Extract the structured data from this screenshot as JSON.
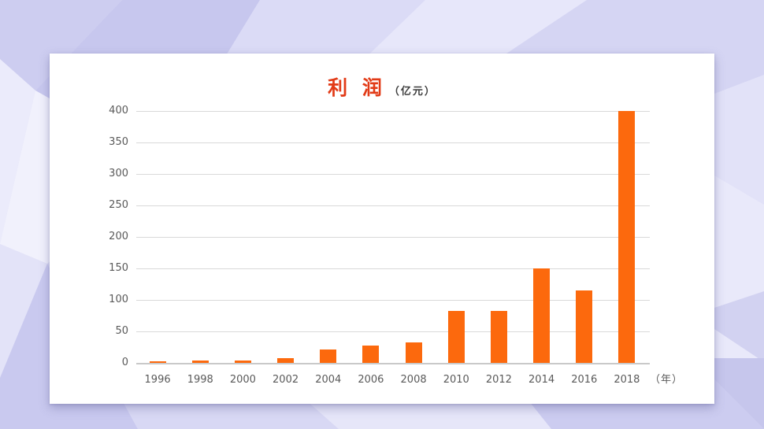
{
  "slide": {
    "background_base": "#dfdff7",
    "background_palette": [
      "#c7c7ee",
      "#cdcdf0",
      "#d5d5f3",
      "#dbdbf6",
      "#e3e3f8",
      "#ebebfb",
      "#f1f1fc"
    ],
    "card_color": "#ffffff"
  },
  "chart_data": {
    "type": "bar",
    "title": "利 润",
    "title_suffix": "（亿元）",
    "title_color": "#e23b17",
    "categories": [
      "1996",
      "1998",
      "2000",
      "2002",
      "2004",
      "2006",
      "2008",
      "2010",
      "2012",
      "2014",
      "2016",
      "2018"
    ],
    "values": [
      2,
      4,
      4,
      8,
      21,
      27,
      32,
      83,
      83,
      150,
      115,
      400
    ],
    "xlabel": "（年）",
    "ylabel": "",
    "ylim": [
      0,
      400
    ],
    "yticks": [
      0,
      50,
      100,
      150,
      200,
      250,
      300,
      350,
      400
    ],
    "grid": true,
    "legend": "none",
    "bar_color": "#fc690d",
    "gridline_color": "#d9d9d9",
    "tick_label_color": "#595959"
  }
}
